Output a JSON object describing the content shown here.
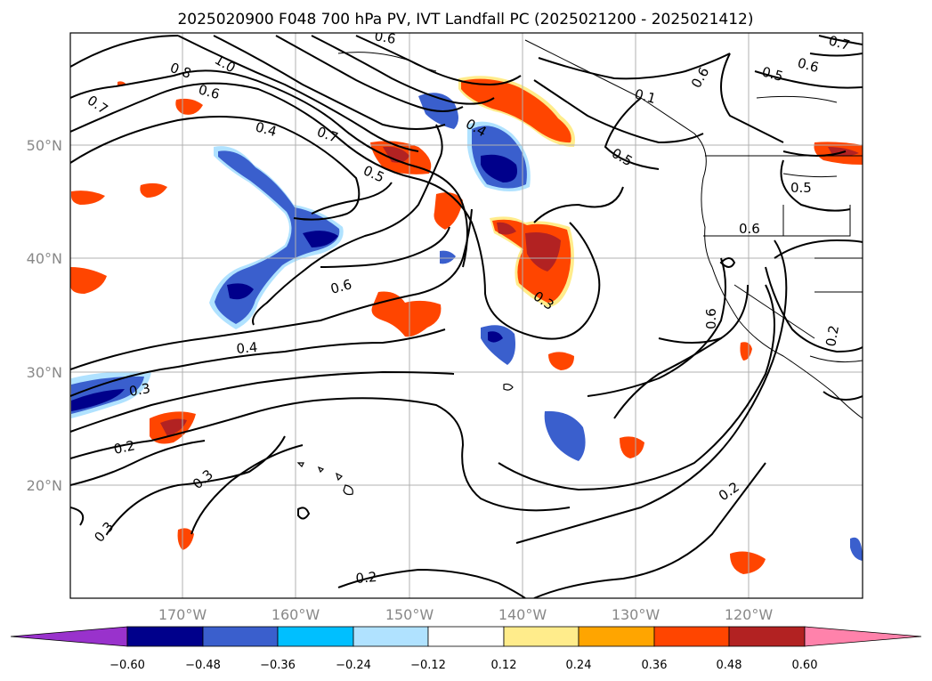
{
  "title": "2025020900 F048 700 hPa PV, IVT Landfall PC (2025021200 - 2025021412)",
  "map": {
    "lat_labels": [
      "50°N",
      "40°N",
      "30°N",
      "20°N"
    ],
    "lon_labels": [
      "170°W",
      "160°W",
      "150°W",
      "140°W",
      "130°W",
      "120°W"
    ],
    "contour_labels": [
      "1.0",
      "0.8",
      "0.6",
      "0.4",
      "0.7",
      "0.7",
      "0.5",
      "0.4",
      "0.5",
      "0.1",
      "0.6",
      "0.5",
      "0.6",
      "0.5",
      "0.6",
      "0.3",
      "0.6",
      "0.4",
      "0.3",
      "0.2",
      "0.3",
      "0.3",
      "0.2",
      "0.2",
      "0.6",
      "0.2",
      "0.7",
      "0.6",
      "0.5"
    ]
  },
  "colorbar": {
    "ticks": [
      "−0.60",
      "−0.48",
      "−0.36",
      "−0.24",
      "−0.12",
      "0.12",
      "0.24",
      "0.36",
      "0.48",
      "0.60"
    ],
    "colors": [
      "#9932cc",
      "#00008b",
      "#3a5fcd",
      "#00bfff",
      "#b0e2ff",
      "#ffffff",
      "#ffec8b",
      "#ffa500",
      "#ff4500",
      "#b22222",
      "#ff82ab"
    ]
  }
}
